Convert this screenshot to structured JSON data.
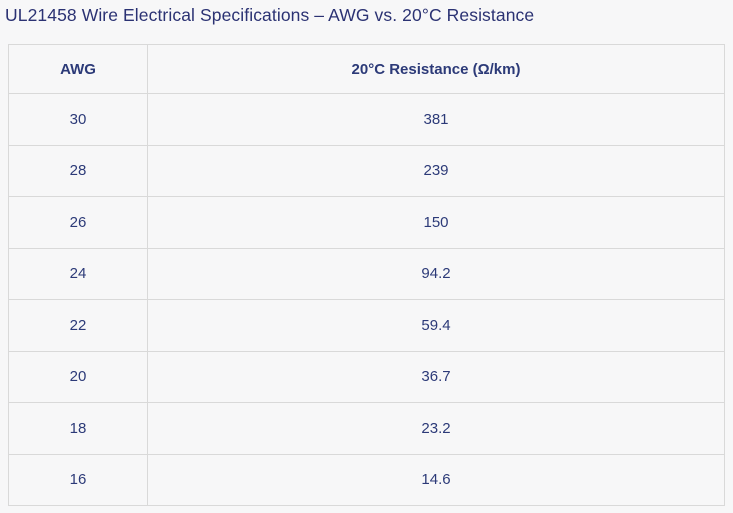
{
  "title": "UL21458 Wire Electrical Specifications – AWG vs. 20°C Resistance",
  "colors": {
    "page_background": "#f7f7f8",
    "text_navy": "#2c3a78",
    "title_navy": "#2b3273",
    "border": "#d9d9d9"
  },
  "table": {
    "columns": [
      "AWG",
      "20°C Resistance (Ω/km)"
    ],
    "rows": [
      {
        "awg": "30",
        "resistance": "381"
      },
      {
        "awg": "28",
        "resistance": "239"
      },
      {
        "awg": "26",
        "resistance": "150"
      },
      {
        "awg": "24",
        "resistance": "94.2"
      },
      {
        "awg": "22",
        "resistance": "59.4"
      },
      {
        "awg": "20",
        "resistance": "36.7"
      },
      {
        "awg": "18",
        "resistance": "23.2"
      },
      {
        "awg": "16",
        "resistance": "14.6"
      }
    ]
  },
  "chart_data": {
    "type": "table",
    "title": "UL21458 Wire Electrical Specifications – AWG vs. 20°C Resistance",
    "columns": [
      "AWG",
      "20°C Resistance (Ω/km)"
    ],
    "categories": [
      30,
      28,
      26,
      24,
      22,
      20,
      18,
      16
    ],
    "values": [
      381,
      239,
      150,
      94.2,
      59.4,
      36.7,
      23.2,
      14.6
    ],
    "xlabel": "AWG",
    "ylabel": "20°C Resistance (Ω/km)"
  }
}
